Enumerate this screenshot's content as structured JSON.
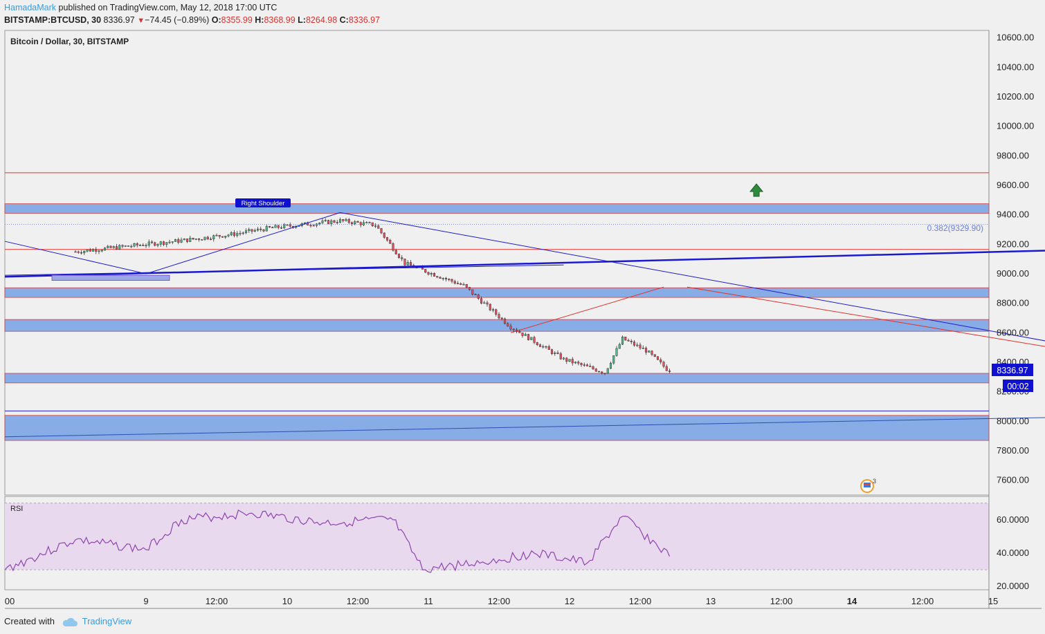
{
  "header": {
    "author": "HamadaMark",
    "published_text": "published on TradingView.com, May 12, 2018 17:00 UTC",
    "symbol": "BITSTAMP:BTCUSD, 30",
    "last": "8336.97",
    "change_arrow": "▼",
    "change": "−74.45 (−0.89%)",
    "o_label": "O:",
    "o_value": "8355.99",
    "h_label": "H:",
    "h_value": "8368.99",
    "l_label": "L:",
    "l_value": "8264.98",
    "c_label": "C:",
    "c_value": "8336.97"
  },
  "chart_title": "Bitcoin / Dollar, 30, BITSTAMP",
  "price_badge": "8336.97",
  "timer_badge": "00:02",
  "fib_label": "0.382(9329.90)",
  "annotation": "Right Shoulder",
  "rsi_label": "RSI",
  "news_count": "3",
  "footer": {
    "created_with": "Created with",
    "brand": "TradingView"
  },
  "colors": {
    "up": "#53b987",
    "down": "#eb4d5c",
    "zone": "#5b8ee0",
    "blue_line": "#1a1acc",
    "red_line": "#e0302a",
    "rsi_bg": "#e8d9ef",
    "rsi_line": "#8e44ad",
    "badge": "#1010d0"
  },
  "chart_data": {
    "type": "candlestick",
    "price_axis": {
      "min": 7500,
      "max": 10650,
      "ticks": [
        "10600.00",
        "10400.00",
        "10200.00",
        "10000.00",
        "9800.00",
        "9600.00",
        "9400.00",
        "9200.00",
        "9000.00",
        "8800.00",
        "8600.00",
        "8400.00",
        "8200.00",
        "8000.00",
        "7800.00",
        "7600.00"
      ]
    },
    "rsi_axis": {
      "min": 18,
      "max": 74,
      "ticks": [
        "60.0000",
        "40.0000",
        "20.0000"
      ],
      "upper": 70,
      "lower": 30
    },
    "time_axis": {
      "labels": [
        {
          "t": "00",
          "at": "2018-05-08 00:00"
        },
        {
          "t": "9",
          "at": "2018-05-09 00:00",
          "bold": false
        },
        {
          "t": "12:00",
          "at": "2018-05-09 12:00"
        },
        {
          "t": "10",
          "at": "2018-05-10 00:00"
        },
        {
          "t": "12:00",
          "at": "2018-05-10 12:00"
        },
        {
          "t": "11",
          "at": "2018-05-11 00:00"
        },
        {
          "t": "12:00",
          "at": "2018-05-11 12:00"
        },
        {
          "t": "12",
          "at": "2018-05-12 00:00"
        },
        {
          "t": "12:00",
          "at": "2018-05-12 12:00"
        },
        {
          "t": "13",
          "at": "2018-05-13 00:00"
        },
        {
          "t": "12:00",
          "at": "2018-05-13 12:00"
        },
        {
          "t": "14",
          "at": "2018-05-14 00:00",
          "bold": true
        },
        {
          "t": "12:00",
          "at": "2018-05-14 12:00"
        },
        {
          "t": "15",
          "at": "2018-05-15 00:00"
        }
      ]
    },
    "zones": [
      {
        "from": 9410,
        "to": 9475
      },
      {
        "from": 8840,
        "to": 8905
      },
      {
        "from": 8610,
        "to": 8690
      },
      {
        "from": 8260,
        "to": 8325
      },
      {
        "from": 7870,
        "to": 8040
      }
    ],
    "hlines": [
      {
        "price": 9685,
        "color": "red"
      },
      {
        "price": 9335,
        "color": "dotted"
      },
      {
        "price": 9165,
        "color": "red"
      },
      {
        "price": 8070,
        "color": "blue"
      }
    ],
    "key_path": [
      [
        "2018-05-08 12:00",
        9150
      ],
      [
        "2018-05-09 06:00",
        9225
      ],
      [
        "2018-05-09 15:00",
        9270
      ],
      [
        "2018-05-09 21:00",
        9310
      ],
      [
        "2018-05-10 09:00",
        9360
      ],
      [
        "2018-05-10 15:00",
        9330
      ],
      [
        "2018-05-10 20:00",
        9070
      ],
      [
        "2018-05-11 06:00",
        8920
      ],
      [
        "2018-05-11 14:00",
        8640
      ],
      [
        "2018-05-11 23:00",
        8420
      ],
      [
        "2018-05-12 06:00",
        8330
      ],
      [
        "2018-05-12 09:00",
        8560
      ],
      [
        "2018-05-12 13:00",
        8480
      ],
      [
        "2018-05-12 17:00",
        8336.97
      ]
    ],
    "rsi_path": [
      [
        "2018-05-08 00:00",
        30
      ],
      [
        "2018-05-08 12:00",
        48
      ],
      [
        "2018-05-09 00:00",
        42
      ],
      [
        "2018-05-09 06:00",
        60
      ],
      [
        "2018-05-09 18:00",
        64
      ],
      [
        "2018-05-10 06:00",
        58
      ],
      [
        "2018-05-10 18:00",
        60
      ],
      [
        "2018-05-10 23:00",
        30
      ],
      [
        "2018-05-11 12:00",
        36
      ],
      [
        "2018-05-11 18:00",
        40
      ],
      [
        "2018-05-12 03:00",
        34
      ],
      [
        "2018-05-12 09:00",
        62
      ],
      [
        "2018-05-12 17:00",
        38
      ]
    ]
  }
}
